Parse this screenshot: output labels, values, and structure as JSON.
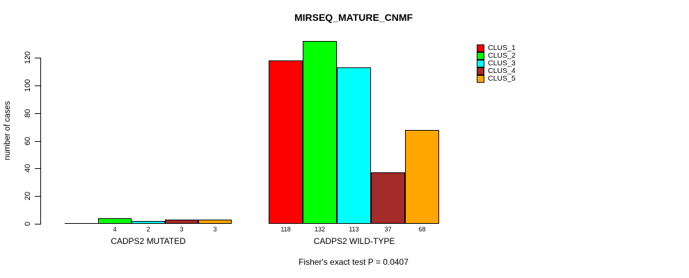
{
  "chart_data": {
    "type": "bar",
    "title": "MIRSEQ_MATURE_CNMF",
    "ylabel": "number of cases",
    "xlabel": "",
    "ylim": [
      0,
      135
    ],
    "yticks": [
      0,
      20,
      40,
      60,
      80,
      100,
      120
    ],
    "grid": false,
    "legend_position": "top-right",
    "categories": [
      "CADPS2 MUTATED",
      "CADPS2 WILD-TYPE"
    ],
    "series": [
      {
        "name": "CLUS_1",
        "color": "#FF0000",
        "values": [
          0,
          118
        ]
      },
      {
        "name": "CLUS_2",
        "color": "#00FF00",
        "values": [
          4,
          132
        ]
      },
      {
        "name": "CLUS_3",
        "color": "#00FFFF",
        "values": [
          2,
          113
        ]
      },
      {
        "name": "CLUS_4",
        "color": "#A52A2A",
        "values": [
          3,
          37
        ]
      },
      {
        "name": "CLUS_5",
        "color": "#FFA500",
        "values": [
          3,
          68
        ]
      }
    ],
    "bar_value_labels": [
      [
        "",
        "4",
        "2",
        "3",
        "3"
      ],
      [
        "118",
        "132",
        "113",
        "37",
        "68"
      ]
    ],
    "annotation": "Fisher's exact test P = 0.0407",
    "axis_color": "#000000",
    "text_color": "#000000",
    "background": "#FFFFFF"
  }
}
